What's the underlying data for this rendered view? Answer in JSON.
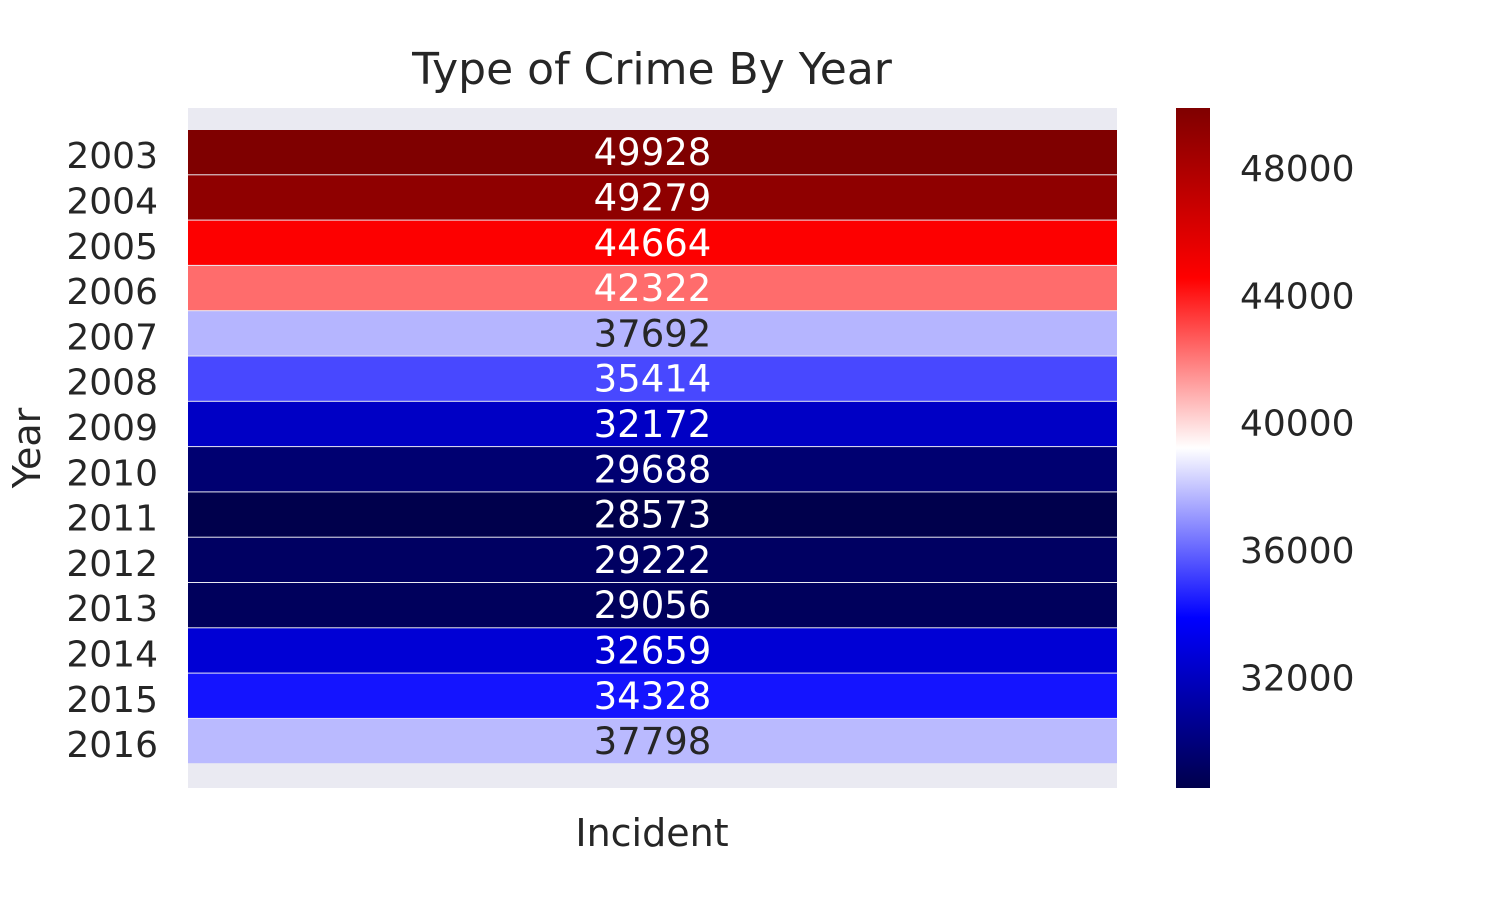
{
  "chart_data": {
    "type": "heatmap",
    "title": "Type of Crime By Year",
    "xlabel": "Incident",
    "ylabel": "Year",
    "columns": [
      ""
    ],
    "rows": [
      "2003",
      "2004",
      "2005",
      "2006",
      "2007",
      "2008",
      "2009",
      "2010",
      "2011",
      "2012",
      "2013",
      "2014",
      "2015",
      "2016"
    ],
    "values": [
      49928,
      49279,
      44664,
      42322,
      37692,
      35414,
      32172,
      29688,
      28573,
      29222,
      29056,
      32659,
      34328,
      37798
    ],
    "colormap": "seismic",
    "colormap_stops": [
      "#00004c",
      "#0000ff",
      "#ffffff",
      "#ff0000",
      "#7f0000"
    ],
    "vmin": 28573,
    "vmax": 49928,
    "colorbar_ticks": [
      32000,
      36000,
      40000,
      44000,
      48000
    ],
    "annotations": true,
    "background_color": "#eaeaf2",
    "grid": false,
    "legend": "colorbar-right"
  }
}
